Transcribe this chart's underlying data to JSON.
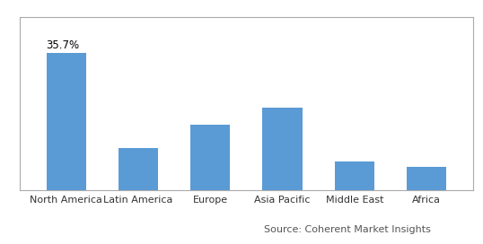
{
  "categories": [
    "North America",
    "Latin America",
    "Europe",
    "Asia Pacific",
    "Middle East",
    "Africa"
  ],
  "values": [
    35.7,
    11.0,
    17.0,
    21.5,
    7.5,
    6.0
  ],
  "bar_color": "#5b9bd5",
  "annotation_label": "35.7%",
  "annotation_index": 0,
  "source_text": "Source: Coherent Market Insights",
  "background_color": "#ffffff",
  "bar_width": 0.55,
  "ylim": [
    0,
    45
  ],
  "annotation_fontsize": 8.5,
  "tick_fontsize": 8,
  "source_fontsize": 8,
  "border_color": "#aaaaaa"
}
